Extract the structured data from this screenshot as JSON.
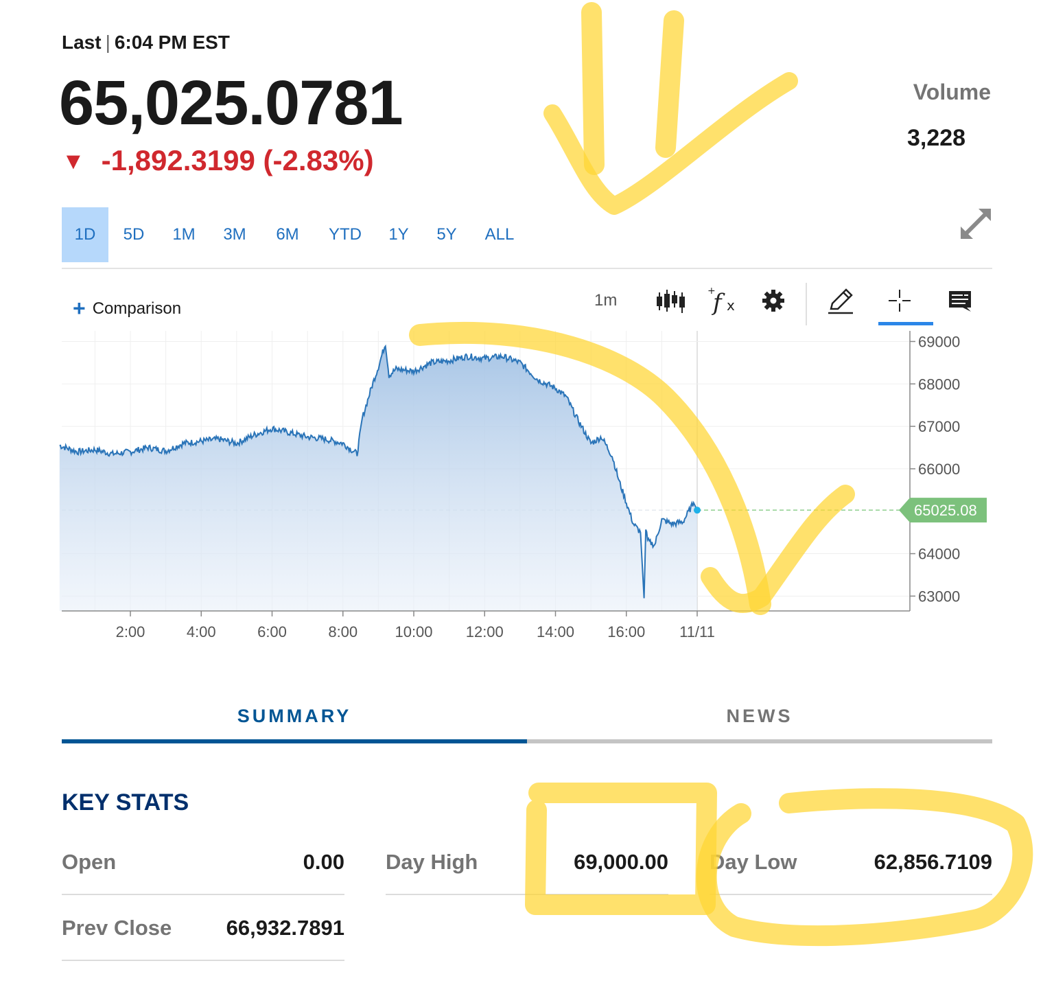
{
  "header": {
    "last_label": "Last",
    "last_time": "6:04 PM EST",
    "price": "65,025.0781",
    "change": "-1,892.3199 (-2.83%)",
    "volume_label": "Volume",
    "volume_value": "3,228"
  },
  "range_tabs": [
    {
      "label": "1D",
      "active": true
    },
    {
      "label": "5D",
      "active": false
    },
    {
      "label": "1M",
      "active": false
    },
    {
      "label": "3M",
      "active": false
    },
    {
      "label": "6M",
      "active": false
    },
    {
      "label": "YTD",
      "active": false
    },
    {
      "label": "1Y",
      "active": false
    },
    {
      "label": "5Y",
      "active": false
    },
    {
      "label": "ALL",
      "active": false
    }
  ],
  "toolbar": {
    "comparison_label": "Comparison",
    "interval_label": "1m",
    "icons": [
      "candlestick-icon",
      "function-icon",
      "gear-icon",
      "pencil-icon",
      "crosshair-icon",
      "comment-icon"
    ],
    "active_tool": "crosshair-icon"
  },
  "chart_data": {
    "type": "area",
    "x_tick_labels": [
      "2:00",
      "4:00",
      "6:00",
      "8:00",
      "10:00",
      "12:00",
      "14:00",
      "16:00",
      "11/11"
    ],
    "y_tick_labels": [
      "69000",
      "68000",
      "67000",
      "66000",
      "64000",
      "63000"
    ],
    "ylim": [
      62650,
      69250
    ],
    "x_hours": [
      0.0,
      0.5,
      1.0,
      1.5,
      2.0,
      2.5,
      3.0,
      3.5,
      4.0,
      4.5,
      5.0,
      5.5,
      6.0,
      6.5,
      7.0,
      7.5,
      8.0,
      8.4,
      8.55,
      8.8,
      9.0,
      9.2,
      9.3,
      9.5,
      10.0,
      10.5,
      11.0,
      11.5,
      12.0,
      12.5,
      13.0,
      13.5,
      14.0,
      14.3,
      14.6,
      15.0,
      15.3,
      15.6,
      15.8,
      16.0,
      16.2,
      16.4,
      16.5,
      16.55,
      16.6,
      16.8,
      17.0,
      17.3,
      17.6,
      17.9,
      18.0
    ],
    "values": [
      66550,
      66400,
      66450,
      66350,
      66400,
      66500,
      66420,
      66600,
      66650,
      66700,
      66600,
      66800,
      66950,
      66850,
      66750,
      66700,
      66600,
      66350,
      67200,
      67900,
      68400,
      68950,
      68200,
      68350,
      68300,
      68500,
      68550,
      68650,
      68600,
      68650,
      68500,
      68100,
      67900,
      67700,
      67200,
      66600,
      66750,
      66300,
      65700,
      65200,
      64700,
      64500,
      62950,
      64600,
      64300,
      64200,
      64800,
      64700,
      64750,
      65200,
      65025
    ],
    "last_value_label": "65025.08",
    "last_value": 65025.08,
    "colors": {
      "line": "#2a74b8",
      "fill_top": "#a7c5e6",
      "last_badge": "#7cc17c"
    }
  },
  "tabs": {
    "summary_label": "SUMMARY",
    "news_label": "NEWS",
    "active": "SUMMARY"
  },
  "key_stats": {
    "title": "KEY STATS",
    "open_label": "Open",
    "open_value": "0.00",
    "day_high_label": "Day High",
    "day_high_value": "69,000.00",
    "day_low_label": "Day Low",
    "day_low_value": "62,856.7109",
    "prev_close_label": "Prev Close",
    "prev_close_value": "66,932.7891"
  },
  "colors": {
    "accent_blue": "#1f6fbf",
    "navy": "#005594",
    "down_red": "#d0282e",
    "highlighter": "#ffd633"
  }
}
